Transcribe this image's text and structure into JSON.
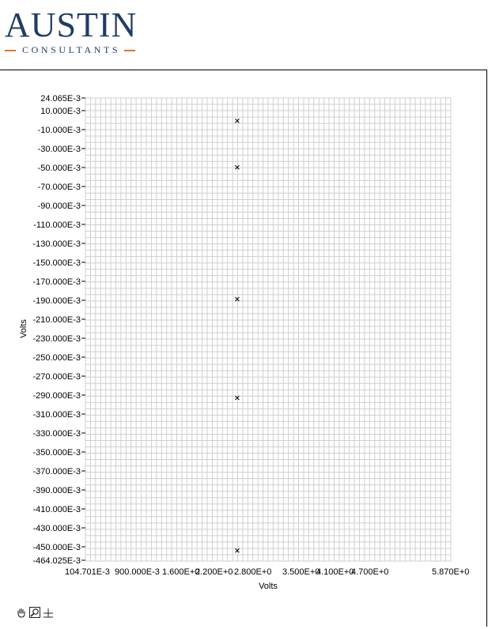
{
  "logo": {
    "main_text": "AUSTIN",
    "sub_text": "CONSULTANTS",
    "accent_color": "#d9772b",
    "text_color": "#1f3d64"
  },
  "toolbar": {
    "icons": [
      "pan-hand-icon",
      "zoom-icon",
      "crosshair-icon"
    ]
  },
  "chart_data": {
    "type": "scatter",
    "title": "",
    "xlabel": "Volts",
    "ylabel": "Volts",
    "xlim": [
      0.104701,
      5.87
    ],
    "ylim": [
      -0.464025,
      0.024065
    ],
    "x_tick_labels": [
      "104.701E-3",
      "900.000E-3",
      "1.600E+0",
      "2.200E+0",
      "2.800E+0",
      "3.500E+0",
      "4.100E+0",
      "4.700E+0",
      "5.870E+0"
    ],
    "y_tick_labels": [
      "24.065E-3",
      "10.000E-3",
      "-10.000E-3",
      "-30.000E-3",
      "-50.000E-3",
      "-70.000E-3",
      "-90.000E-3",
      "-110.000E-3",
      "-130.000E-3",
      "-150.000E-3",
      "-170.000E-3",
      "-190.000E-3",
      "-210.000E-3",
      "-230.000E-3",
      "-250.000E-3",
      "-270.000E-3",
      "-290.000E-3",
      "-310.000E-3",
      "-330.000E-3",
      "-350.000E-3",
      "-370.000E-3",
      "-390.000E-3",
      "-410.000E-3",
      "-430.000E-3",
      "-450.000E-3",
      "-464.025E-3"
    ],
    "grid": true,
    "marker": "x",
    "points": [
      {
        "x": 2.5,
        "y": 0.0
      },
      {
        "x": 2.5,
        "y": -0.049
      },
      {
        "x": 2.5,
        "y": -0.188
      },
      {
        "x": 2.5,
        "y": -0.292
      },
      {
        "x": 2.5,
        "y": -0.453
      }
    ]
  }
}
